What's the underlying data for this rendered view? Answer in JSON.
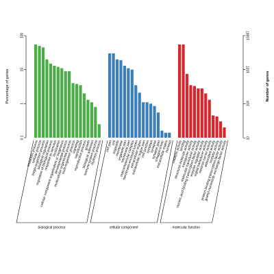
{
  "chart_data": {
    "type": "bar",
    "log_scale": true,
    "ylabel": "Percentage of genes",
    "y2label": "Number of genes",
    "ylim": [
      0.1,
      100
    ],
    "yticks": [
      0.1,
      1,
      10,
      100
    ],
    "y2lim": [
      10.367,
      10367
    ],
    "y2ticks": [
      10,
      104,
      1037,
      10367
    ],
    "groups": [
      {
        "name": "biological process",
        "color": "#4aae45",
        "categories": [
          "metabolic process",
          "cellular process",
          "single-organism process",
          "biological regulation",
          "regulation of biological process",
          "response to stimulus",
          "localization",
          "cellular component organization or biogenesis",
          "developmental process",
          "multicellular organismal process",
          "multi-organism process",
          "signaling",
          "reproduction",
          "reproductive process",
          "growth",
          "biological adhesion",
          "immune system process",
          "rhythmic process"
        ],
        "values": [
          55,
          50,
          45,
          20,
          15,
          13,
          12,
          11,
          9,
          9,
          4,
          3.8,
          3.5,
          2,
          1.3,
          1.1,
          0.8,
          0.25
        ]
      },
      {
        "name": "cellular component",
        "color": "#3a7fba",
        "categories": [
          "cell part",
          "cell",
          "organelle",
          "membrane",
          "organelle part",
          "membrane part",
          "macromolecular complex",
          "membrane-enclosed lumen",
          "extracellular region",
          "extracellular region part",
          "cell junction",
          "symplast",
          "synapse",
          "synapse part",
          "collagen trimer",
          "extracellular matrix",
          "nucleoid"
        ],
        "values": [
          30,
          30,
          20,
          19,
          13,
          11,
          10,
          3.5,
          2.1,
          1.1,
          1.1,
          1.0,
          0.85,
          0.55,
          0.16,
          0.14,
          0.14
        ]
      },
      {
        "name": "molecular function",
        "color": "#d9262b",
        "categories": [
          "catalytic activity",
          "binding",
          "structural molecule activity",
          "transporter activity",
          "molecular transducer activity",
          "nucleic acid binding transcription factor activity",
          "enzyme regulator activity",
          "signal transducer activity",
          "electron carrier activity",
          "antioxidant activity",
          "receptor activity",
          "protein binding transcription factor activity",
          "guanyl-nucleotide exchange factor activity"
        ],
        "values": [
          55,
          55,
          7.5,
          3.5,
          3.3,
          2.8,
          2.8,
          2.0,
          1.3,
          0.45,
          0.42,
          0.3,
          0.2
        ]
      }
    ]
  }
}
